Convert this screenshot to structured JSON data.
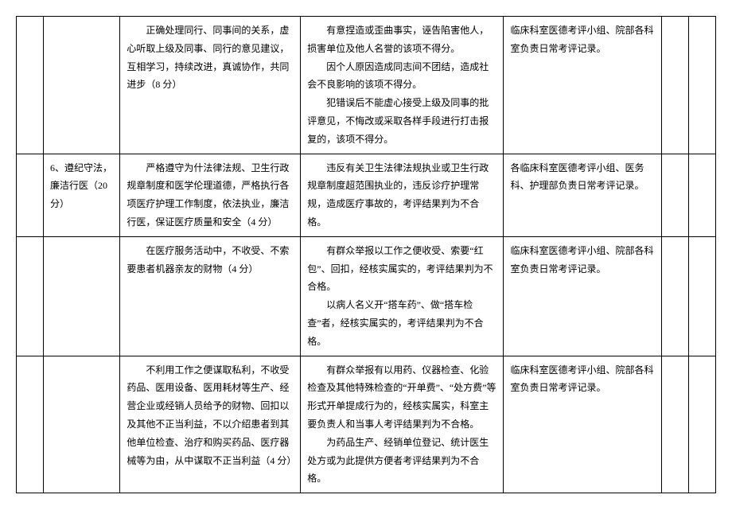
{
  "rows": [
    {
      "c1": "",
      "c2": "",
      "c3": "　　正确处理同行、同事间的关系，虚心听取上级及同事、同行的意见建议，互相学习，持续改进，真诚协作，共同进步（8 分）",
      "c4_lines": [
        "　　有意捏造或歪曲事实，诬告陷害他人，损害单位及他人名誉的该项不得分。",
        "　　因个人原因造成同志间不团结，造成社会不良影响的该项不得分。",
        "　　犯错误后不能虚心接受上级及同事的批评意见，不悔改或采取各样手段进行打击报复的，该项不得分。"
      ],
      "c5": "临床科室医德考评小组、院部各科室负责日常考评记录。",
      "c6": "",
      "c7": ""
    },
    {
      "c1": "",
      "c2": "6、遵纪守法，廉洁行医（20 分）",
      "c3": "　　严格遵守为什法律法规、卫生行政规章制度和医学伦理道德，严格执行各项医疗护理工作制度，依法执业，廉洁行医，保证医疗质量和安全（4 分）",
      "c4_lines": [
        "　　违反有关卫生法律法规执业或卫生行政规章制度超范围执业的，违反诊疗护理常规，造成医疗事故的，考评结果判为不合格。"
      ],
      "c5": "各临床科室医德考评小组、医务科、护理部负责日常考评记录。",
      "c6": "",
      "c7": ""
    },
    {
      "c1": "",
      "c2": "",
      "c3": "　　在医疗服务活动中，不收受、不索要患者机器亲友的财物（4 分）",
      "c4_lines": [
        "　　有群众举报以工作之便收受、索要“红包”、回扣，经核实属实的，考评结果判为不合格。",
        "　　以病人名义开“搭车药”、做“搭车检查”者，经核实属实的，考评结果判为不合格。"
      ],
      "c5": "临床科室医德考评小组、院部各科室负责日常考评记录。",
      "c6": "",
      "c7": ""
    },
    {
      "c1": "",
      "c2": "",
      "c3": "　　不利用工作之便谋取私利，不收受药品、医用设备、医用耗材等生产、经营企业或经销人员给予的财物、回扣以及其他不正当利益，不以介绍患者到其他单位检查、治疗和购买药品、医疗器械等为由，从中谋取不正当利益（4 分）",
      "c4_lines": [
        "　　有群众举报有以用药、仪器检查、化验检查及其他特殊检查的“开单费”、“处方费”等形式开单提成行为的，经核实属实，科室主要负责人和当事人考评结果判为不合格。",
        "　　为药品生产、经销单位登记、统计医生处方或为此提供方便者考评结果判为不合格。"
      ],
      "c5": "临床科室医德考评小组、院部各科室负责日常考评记录。",
      "c6": "",
      "c7": ""
    }
  ]
}
